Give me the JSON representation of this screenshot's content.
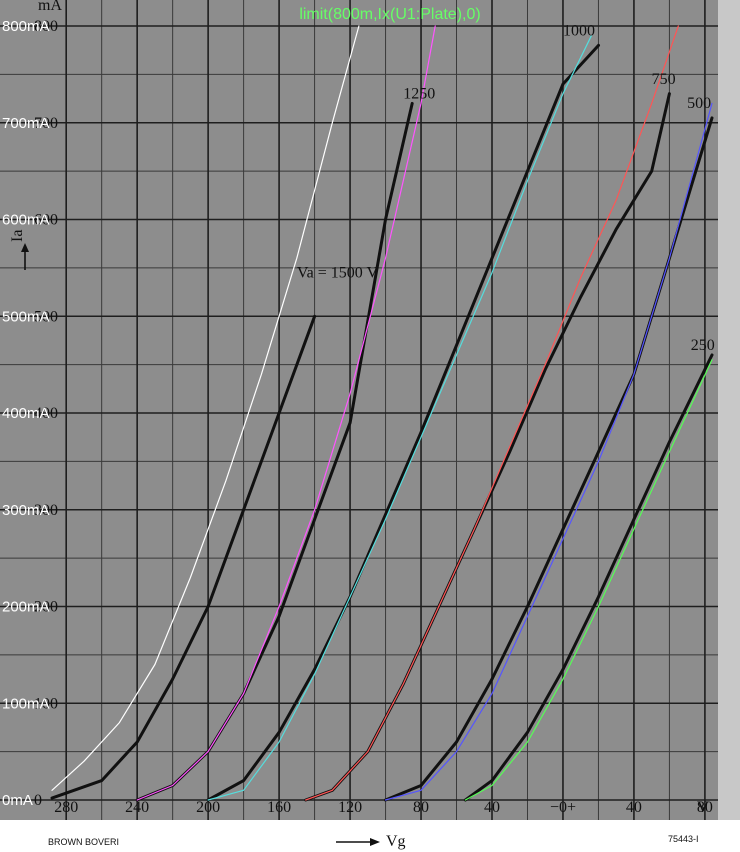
{
  "chart_data": {
    "type": "line",
    "title": "limit(800m,Ix(U1:Plate),0)",
    "y_unit_label": "mA",
    "y_axis_symbol": "Ia",
    "x_axis_symbol": "Vg",
    "x_unit_label": "V",
    "xlim": [
      -288,
      84
    ],
    "ylim": [
      0,
      800
    ],
    "grid": true,
    "sim_x_tick_labels": [
      "-280V",
      "-240V",
      "-200V",
      "-160V",
      "-120V",
      "-80V",
      "-40V",
      "0V",
      "40V",
      "80V"
    ],
    "sim_y_tick_labels": [
      "0mA",
      "100mA",
      "200mA",
      "300mA",
      "400mA",
      "500mA",
      "600mA",
      "700mA",
      "800mA"
    ],
    "paper_x_tick_labels": [
      "280",
      "240",
      "200",
      "160",
      "120",
      "80",
      "40",
      "−0+",
      "40",
      "80"
    ],
    "paper_y_tick_labels": [
      "0",
      "100",
      "200",
      "300",
      "400",
      "500",
      "600",
      "700",
      "800"
    ],
    "paper_footer_left": "BROWN BOVERI",
    "paper_footer_right": "75443-I",
    "series": [
      {
        "name": "Va = 1500 V",
        "source": "datasheet",
        "color": "#111111",
        "x": [
          -288,
          -260,
          -240,
          -220,
          -200,
          -180,
          -160,
          -140
        ],
        "y": [
          2,
          20,
          60,
          125,
          200,
          300,
          400,
          500
        ]
      },
      {
        "name": "1250",
        "source": "datasheet",
        "color": "#111111",
        "x": [
          -240,
          -220,
          -200,
          -180,
          -160,
          -140,
          -120,
          -100,
          -85
        ],
        "y": [
          0,
          15,
          50,
          110,
          190,
          290,
          390,
          600,
          720
        ]
      },
      {
        "name": "1000",
        "source": "datasheet",
        "color": "#111111",
        "x": [
          -200,
          -180,
          -160,
          -140,
          -120,
          -100,
          -80,
          -60,
          -40,
          -20,
          0,
          20
        ],
        "y": [
          0,
          20,
          70,
          135,
          210,
          295,
          380,
          470,
          560,
          650,
          740,
          780
        ]
      },
      {
        "name": "750",
        "source": "datasheet",
        "color": "#111111",
        "x": [
          -145,
          -130,
          -110,
          -90,
          -70,
          -50,
          -30,
          -10,
          10,
          30,
          50,
          60
        ],
        "y": [
          0,
          10,
          50,
          120,
          200,
          280,
          360,
          445,
          520,
          590,
          650,
          730
        ]
      },
      {
        "name": "500",
        "source": "datasheet",
        "color": "#111111",
        "x": [
          -100,
          -80,
          -60,
          -40,
          -20,
          0,
          20,
          40,
          60,
          84
        ],
        "y": [
          0,
          15,
          60,
          125,
          200,
          280,
          360,
          440,
          560,
          705
        ]
      },
      {
        "name": "250",
        "source": "datasheet",
        "color": "#111111",
        "x": [
          -55,
          -40,
          -20,
          0,
          20,
          40,
          60,
          84
        ],
        "y": [
          0,
          20,
          70,
          135,
          210,
          290,
          370,
          460
        ]
      },
      {
        "source": "simulation",
        "color": "#ffffff",
        "x": [
          -288,
          -270,
          -250,
          -230,
          -210,
          -190,
          -170,
          -150,
          -130,
          -115
        ],
        "y": [
          10,
          40,
          80,
          140,
          230,
          330,
          440,
          560,
          700,
          800
        ]
      },
      {
        "source": "simulation",
        "color": "#ff55ff",
        "x": [
          -240,
          -220,
          -200,
          -180,
          -160,
          -140,
          -120,
          -100,
          -80,
          -72
        ],
        "y": [
          0,
          15,
          50,
          110,
          200,
          300,
          420,
          560,
          720,
          800
        ]
      },
      {
        "source": "simulation",
        "color": "#55dddd",
        "x": [
          -200,
          -180,
          -160,
          -140,
          -120,
          -100,
          -80,
          -60,
          -40,
          -20,
          0,
          16
        ],
        "y": [
          0,
          10,
          60,
          130,
          210,
          290,
          375,
          460,
          545,
          640,
          730,
          790
        ]
      },
      {
        "source": "simulation",
        "color": "#ff5555",
        "x": [
          -145,
          -130,
          -110,
          -90,
          -70,
          -50,
          -30,
          -10,
          10,
          30,
          50,
          65
        ],
        "y": [
          0,
          10,
          50,
          120,
          200,
          280,
          365,
          450,
          540,
          620,
          720,
          800
        ]
      },
      {
        "source": "simulation",
        "color": "#5555ff",
        "x": [
          -100,
          -80,
          -60,
          -40,
          -20,
          0,
          20,
          40,
          60,
          84
        ],
        "y": [
          0,
          10,
          50,
          110,
          190,
          270,
          350,
          440,
          560,
          720
        ]
      },
      {
        "source": "simulation",
        "color": "#55ff55",
        "x": [
          -55,
          -40,
          -20,
          0,
          20,
          40,
          60,
          84
        ],
        "y": [
          0,
          15,
          60,
          125,
          200,
          280,
          360,
          455
        ]
      }
    ],
    "curve_labels": [
      {
        "text": "Va = 1500 V",
        "x": -150,
        "y": 540
      },
      {
        "text": "1250",
        "x": -90,
        "y": 725
      },
      {
        "text": "1000",
        "x": 0,
        "y": 790
      },
      {
        "text": "750",
        "x": 50,
        "y": 740
      },
      {
        "text": "500",
        "x": 70,
        "y": 715
      },
      {
        "text": "250",
        "x": 72,
        "y": 465
      }
    ]
  }
}
